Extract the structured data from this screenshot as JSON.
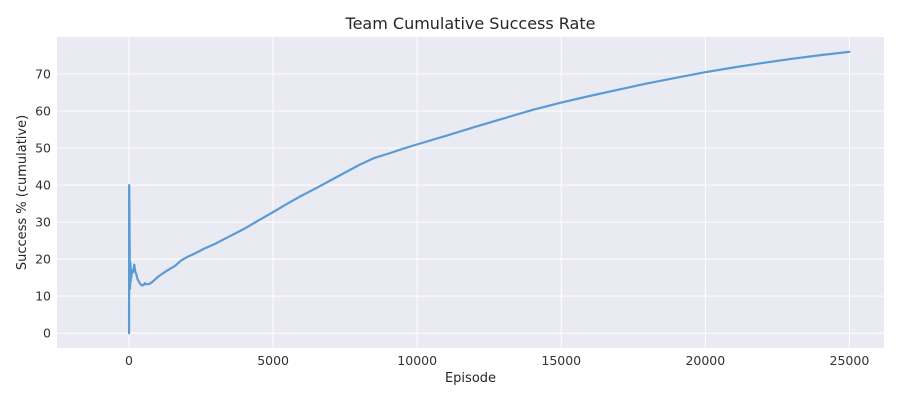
{
  "chart_data": {
    "type": "line",
    "title": "Team Cumulative Success Rate",
    "xlabel": "Episode",
    "ylabel": "Success % (cumulative)",
    "xlim": [
      -2500,
      26200
    ],
    "ylim": [
      -4,
      80
    ],
    "xticks": [
      0,
      5000,
      10000,
      15000,
      20000,
      25000
    ],
    "yticks": [
      0,
      10,
      20,
      30,
      40,
      50,
      60,
      70
    ],
    "grid": true,
    "background": "#EAEAF2",
    "line_color": "#5B9BD5",
    "series": [
      {
        "x": [
          1,
          3,
          6,
          10,
          15,
          20,
          25,
          30,
          35,
          40,
          45,
          50,
          55,
          60,
          70,
          80,
          90,
          100,
          120,
          140,
          160,
          180,
          200,
          220,
          250,
          280,
          300,
          350,
          400,
          450,
          500,
          550,
          600,
          700,
          800,
          900,
          1000,
          1200,
          1400,
          1600,
          1800,
          2000,
          2300,
          2600,
          3000,
          3500,
          4000,
          4500,
          5000,
          5500,
          6000,
          6500,
          7000,
          7500,
          8000,
          8500,
          9000,
          9500,
          10000,
          11000,
          12000,
          13000,
          14000,
          15000,
          16000,
          17000,
          18000,
          19000,
          20000,
          21000,
          22000,
          23000,
          24000,
          25000
        ],
        "y": [
          0,
          39.5,
          40,
          36,
          30,
          25,
          20,
          15,
          12,
          14,
          17,
          19,
          16,
          14,
          17,
          15,
          17,
          16,
          17,
          16.5,
          17.5,
          18.5,
          17.5,
          16.5,
          16,
          15,
          14.5,
          13.8,
          13.2,
          12.9,
          13,
          13.5,
          13.2,
          13.3,
          13.8,
          14.5,
          15.2,
          16.3,
          17.3,
          18.2,
          19.6,
          20.5,
          21.6,
          22.8,
          24.2,
          26.2,
          28.2,
          30.5,
          32.7,
          35,
          37.2,
          39.2,
          41.3,
          43.4,
          45.5,
          47.3,
          48.5,
          49.8,
          51,
          53.3,
          55.7,
          58,
          60.3,
          62.3,
          64.1,
          65.8,
          67.5,
          69,
          70.5,
          71.8,
          73,
          74.1,
          75.1,
          76
        ]
      }
    ]
  }
}
